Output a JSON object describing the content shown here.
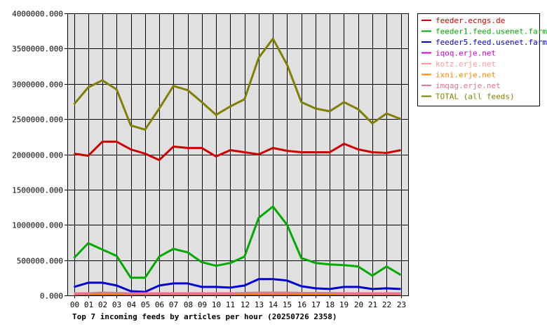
{
  "chart_data": {
    "type": "line",
    "title": "Top 7 incoming feeds by articles per hour (20250726 2358)",
    "xlabel": "",
    "ylabel": "",
    "x": [
      "00",
      "01",
      "02",
      "03",
      "04",
      "05",
      "06",
      "07",
      "08",
      "09",
      "10",
      "11",
      "12",
      "13",
      "14",
      "15",
      "16",
      "17",
      "18",
      "19",
      "20",
      "21",
      "22",
      "23"
    ],
    "ylim": [
      0,
      4000000
    ],
    "yticks": [
      "0.000",
      "500000.000",
      "1000000.000",
      "1500000.000",
      "2000000.000",
      "2500000.000",
      "3000000.000",
      "3500000.000",
      "4000000.000"
    ],
    "grid": true,
    "legend_position": "right",
    "plot_background": "#e0e0e0",
    "series": [
      {
        "name": "feeder.ecngs.de",
        "color": "#cc0000",
        "values": [
          2010000,
          1980000,
          2180000,
          2180000,
          2070000,
          2010000,
          1920000,
          2110000,
          2090000,
          2090000,
          1970000,
          2060000,
          2030000,
          2000000,
          2090000,
          2050000,
          2030000,
          2030000,
          2030000,
          2150000,
          2070000,
          2030000,
          2020000,
          2060000
        ]
      },
      {
        "name": "feeder1.feed.usenet.farm",
        "color": "#00aa00",
        "values": [
          530000,
          740000,
          650000,
          560000,
          250000,
          250000,
          550000,
          660000,
          610000,
          470000,
          420000,
          460000,
          550000,
          1100000,
          1260000,
          1000000,
          530000,
          460000,
          440000,
          430000,
          410000,
          280000,
          410000,
          290000
        ]
      },
      {
        "name": "feeder5.feed.usenet.farm",
        "color": "#0000cc",
        "values": [
          120000,
          180000,
          180000,
          140000,
          60000,
          50000,
          140000,
          170000,
          170000,
          120000,
          120000,
          110000,
          140000,
          230000,
          230000,
          210000,
          130000,
          100000,
          90000,
          120000,
          120000,
          90000,
          100000,
          90000
        ]
      },
      {
        "name": "iqoq.erje.net",
        "color": "#cc00cc",
        "values": [
          15000,
          15000,
          15000,
          15000,
          15000,
          15000,
          15000,
          15000,
          15000,
          15000,
          15000,
          15000,
          15000,
          15000,
          15000,
          15000,
          15000,
          15000,
          15000,
          15000,
          15000,
          15000,
          15000,
          15000
        ]
      },
      {
        "name": "kotz.erje.net",
        "color": "#ff9999",
        "values": [
          25000,
          25000,
          25000,
          25000,
          25000,
          25000,
          25000,
          25000,
          25000,
          25000,
          25000,
          25000,
          25000,
          25000,
          25000,
          25000,
          25000,
          25000,
          25000,
          25000,
          25000,
          25000,
          25000,
          25000
        ]
      },
      {
        "name": "ixni.erje.net",
        "color": "#ff8800",
        "values": [
          20000,
          20000,
          20000,
          20000,
          20000,
          20000,
          20000,
          20000,
          20000,
          20000,
          20000,
          20000,
          20000,
          20000,
          20000,
          20000,
          20000,
          20000,
          20000,
          20000,
          20000,
          20000,
          20000,
          20000
        ]
      },
      {
        "name": "imqag.erje.net",
        "color": "#dd7799",
        "values": [
          30000,
          30000,
          40000,
          35000,
          30000,
          30000,
          30000,
          30000,
          30000,
          30000,
          30000,
          30000,
          35000,
          40000,
          40000,
          40000,
          35000,
          35000,
          35000,
          30000,
          30000,
          30000,
          30000,
          30000
        ]
      },
      {
        "name": "TOTAL (all feeds)",
        "color": "#808000",
        "values": [
          2710000,
          2950000,
          3050000,
          2920000,
          2410000,
          2350000,
          2650000,
          2970000,
          2910000,
          2740000,
          2560000,
          2680000,
          2780000,
          3370000,
          3640000,
          3270000,
          2740000,
          2650000,
          2610000,
          2740000,
          2640000,
          2440000,
          2580000,
          2500000
        ]
      }
    ]
  }
}
